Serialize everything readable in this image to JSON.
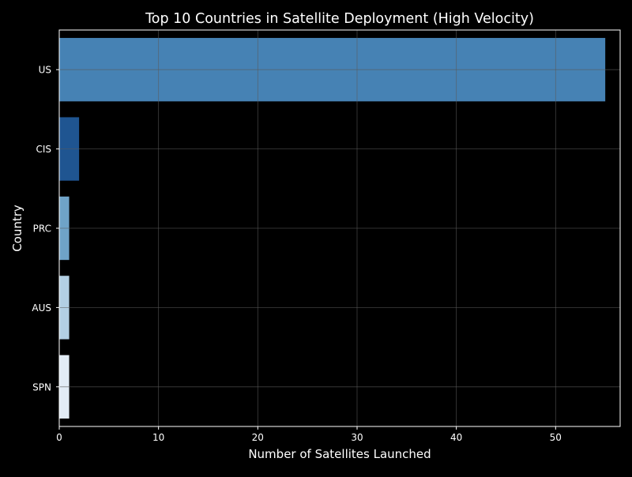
{
  "chart_data": {
    "type": "bar",
    "orientation": "horizontal",
    "title": "Top 10 Countries in Satellite Deployment (High Velocity)",
    "xlabel": "Number of Satellites Launched",
    "ylabel": "Country",
    "categories": [
      "US",
      "CIS",
      "PRC",
      "AUS",
      "SPN"
    ],
    "values": [
      55,
      2,
      1,
      1,
      1
    ],
    "colors": [
      "#4682b4",
      "#1f5591",
      "#6fa3c8",
      "#b2cfe3",
      "#e2ecf6"
    ],
    "xlim": [
      0,
      56.5
    ],
    "xticks": [
      0,
      10,
      20,
      30,
      40,
      50
    ],
    "grid": true,
    "legend": "none"
  },
  "theme": {
    "background": "#000000",
    "text": "#ffffff",
    "grid": "#5a5a5a",
    "axis": "#ffffff"
  }
}
